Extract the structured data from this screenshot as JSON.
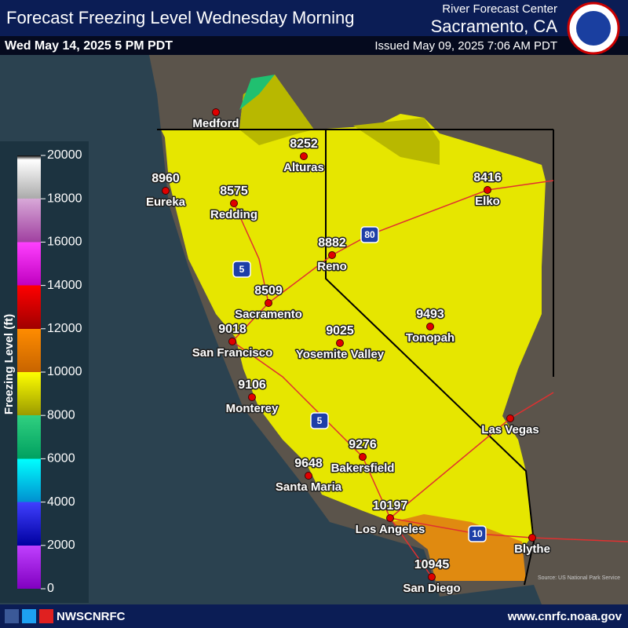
{
  "header": {
    "title": "Forecast Freezing Level Wednesday Morning",
    "valid_time": "Wed May 14, 2025 5 PM PDT",
    "office": "River Forecast Center",
    "office_location": "Sacramento, CA",
    "issued": "Issued May 09, 2025 7:06 AM PDT"
  },
  "legend": {
    "title": "Freezing Level (ft)",
    "ticks": [
      20000,
      18000,
      16000,
      14000,
      12000,
      10000,
      8000,
      6000,
      4000,
      2000,
      0
    ]
  },
  "cities": [
    {
      "name": "Medford"
    },
    {
      "name": "Eureka",
      "value": 8960
    },
    {
      "name": "Redding",
      "value": 8575
    },
    {
      "name": "Alturas",
      "value": 8252
    },
    {
      "name": "Elko",
      "value": 8416
    },
    {
      "name": "Reno",
      "value": 8882
    },
    {
      "name": "Sacramento",
      "value": 8509
    },
    {
      "name": "San Francisco",
      "value": 9018
    },
    {
      "name": "Yosemite Valley",
      "value": 9025
    },
    {
      "name": "Tonopah",
      "value": 9493
    },
    {
      "name": "Monterey",
      "value": 9106
    },
    {
      "name": "Las Vegas"
    },
    {
      "name": "Bakersfield",
      "value": 9276
    },
    {
      "name": "Santa Maria",
      "value": 9648
    },
    {
      "name": "Los Angeles",
      "value": 10197
    },
    {
      "name": "Blythe"
    },
    {
      "name": "San Diego",
      "value": 10945
    }
  ],
  "interstates": [
    "5",
    "80",
    "5",
    "10"
  ],
  "source": "Source: US National Park Service",
  "footer": {
    "handle": "NWSCNRFC",
    "url": "www.cnrfc.noaa.gov"
  }
}
